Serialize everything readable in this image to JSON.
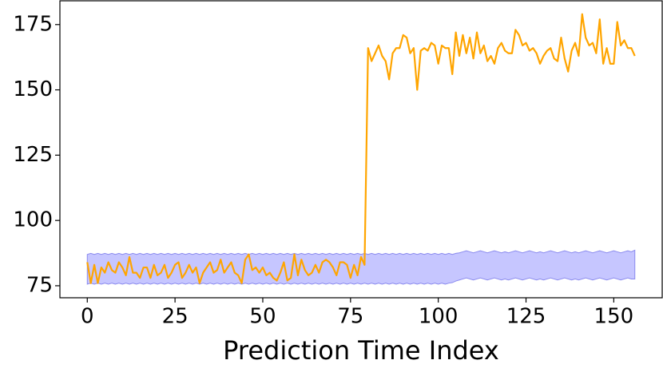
{
  "chart_data": {
    "type": "line",
    "xlabel": "Prediction Time Index",
    "xlim": [
      -7.8,
      163.8
    ],
    "ylim": [
      70.4,
      184.1
    ],
    "xticks": [
      0,
      25,
      50,
      75,
      100,
      125,
      150
    ],
    "yticks": [
      75,
      100,
      125,
      150,
      175
    ],
    "series": [
      {
        "color": "#ffa500",
        "values": [
          84,
          76,
          83,
          76,
          82,
          80,
          84,
          81,
          80,
          84,
          82,
          79,
          86,
          80,
          80,
          78,
          82,
          82,
          78,
          83,
          79,
          80,
          83,
          78,
          80,
          83,
          84,
          78,
          80,
          83,
          80,
          82,
          76,
          80,
          82,
          84,
          80,
          81,
          85,
          80,
          82,
          84,
          80,
          79,
          76,
          85,
          87,
          81,
          82,
          80,
          82,
          79,
          80,
          78,
          77,
          80,
          84,
          77,
          78,
          87,
          79,
          85,
          81,
          79,
          80,
          83,
          80,
          84,
          85,
          84,
          82,
          79,
          84,
          84,
          83,
          78,
          83,
          79,
          86,
          83,
          166,
          161,
          164,
          167,
          163,
          161,
          154,
          164,
          166,
          166,
          171,
          170,
          164,
          166,
          150,
          165,
          166,
          165,
          168,
          167,
          160,
          167,
          166,
          166,
          156,
          172,
          163,
          171,
          164,
          170,
          162,
          172,
          164,
          167,
          161,
          163,
          160,
          166,
          168,
          165,
          164,
          164,
          173,
          171,
          167,
          168,
          165,
          166,
          164,
          160,
          163,
          165,
          166,
          162,
          161,
          170,
          162,
          157,
          165,
          168,
          163,
          179,
          170,
          167,
          168,
          164,
          177,
          160,
          166,
          160,
          160,
          176,
          167,
          169,
          166,
          166,
          163
        ]
      }
    ],
    "band": {
      "color": "#c6c6ff",
      "edge_color": "#8a8aee",
      "upper": [
        87.0,
        87.4,
        87.0,
        87.4,
        87.0,
        87.4,
        87.0,
        87.4,
        87.0,
        87.4,
        87.0,
        87.4,
        87.0,
        87.4,
        87.0,
        87.4,
        87.0,
        87.4,
        87.0,
        87.4,
        87.0,
        87.4,
        87.0,
        87.4,
        87.0,
        87.4,
        87.0,
        87.4,
        87.0,
        87.4,
        87.0,
        87.4,
        87.0,
        87.4,
        87.0,
        87.4,
        87.0,
        87.4,
        87.0,
        87.4,
        87.0,
        87.4,
        87.0,
        87.4,
        87.0,
        87.4,
        87.0,
        87.4,
        87.0,
        87.4,
        87.0,
        87.4,
        87.0,
        87.4,
        87.0,
        87.4,
        87.0,
        87.4,
        87.0,
        87.4,
        87.0,
        87.4,
        87.0,
        87.4,
        87.0,
        87.4,
        87.0,
        87.4,
        87.0,
        87.4,
        87.0,
        87.4,
        87.0,
        87.4,
        87.0,
        87.4,
        87.0,
        87.4,
        87.0,
        87.4,
        87.0,
        87.4,
        87.0,
        87.4,
        87.0,
        87.4,
        87.0,
        87.4,
        87.0,
        87.4,
        87.0,
        87.4,
        87.0,
        87.4,
        87.0,
        87.4,
        87.0,
        87.4,
        87.0,
        87.4,
        87.0,
        87.4,
        87.0,
        87.4,
        87.0,
        87.4,
        87.6,
        88.0,
        88.4,
        88.0,
        87.6,
        88.0,
        88.4,
        88.0,
        87.6,
        88.0,
        88.4,
        88.0,
        87.6,
        88.0,
        87.6,
        88.0,
        88.4,
        88.0,
        87.6,
        88.0,
        88.4,
        88.0,
        87.6,
        88.0,
        87.6,
        88.0,
        88.4,
        88.0,
        87.6,
        88.0,
        88.4,
        88.0,
        87.6,
        88.0,
        87.6,
        88.0,
        88.4,
        88.0,
        87.6,
        88.0,
        88.4,
        88.0,
        87.6,
        88.0,
        88.4,
        88.0,
        87.6,
        88.0,
        88.4,
        88.0,
        88.6
      ],
      "lower": [
        75.6,
        76.0,
        75.6,
        76.0,
        75.6,
        76.0,
        75.6,
        76.0,
        75.6,
        76.0,
        75.6,
        76.0,
        75.6,
        76.0,
        75.6,
        76.0,
        75.6,
        76.0,
        75.6,
        76.0,
        75.6,
        76.0,
        75.6,
        76.0,
        75.6,
        76.0,
        75.6,
        76.0,
        75.6,
        76.0,
        75.6,
        76.0,
        75.6,
        76.0,
        75.6,
        76.0,
        75.6,
        76.0,
        75.6,
        76.0,
        75.6,
        76.0,
        75.6,
        76.0,
        75.6,
        76.0,
        75.6,
        76.0,
        75.6,
        76.0,
        75.6,
        76.0,
        75.6,
        76.0,
        75.6,
        76.0,
        75.6,
        76.0,
        75.6,
        76.0,
        75.6,
        76.0,
        75.6,
        76.0,
        75.6,
        76.0,
        75.6,
        76.0,
        75.6,
        76.0,
        75.6,
        76.0,
        75.6,
        76.0,
        75.6,
        76.0,
        75.6,
        76.0,
        75.6,
        76.0,
        75.6,
        76.0,
        75.6,
        76.0,
        75.6,
        76.0,
        75.6,
        76.0,
        75.6,
        76.0,
        75.6,
        76.0,
        75.6,
        76.0,
        75.6,
        76.0,
        75.6,
        76.0,
        75.6,
        76.0,
        75.6,
        76.0,
        75.6,
        76.0,
        76.2,
        76.8,
        77.2,
        77.6,
        78.0,
        77.6,
        77.2,
        77.6,
        78.0,
        77.6,
        77.2,
        77.6,
        78.0,
        77.6,
        77.2,
        77.6,
        77.2,
        77.6,
        78.0,
        77.6,
        77.2,
        77.6,
        78.0,
        77.6,
        77.2,
        77.6,
        77.2,
        77.6,
        78.0,
        77.6,
        77.2,
        77.6,
        78.0,
        77.6,
        77.2,
        77.6,
        77.2,
        77.6,
        78.0,
        77.6,
        77.2,
        77.6,
        78.0,
        77.6,
        77.2,
        77.6,
        78.0,
        77.6,
        77.2,
        77.6,
        78.0,
        77.6,
        77.6
      ]
    }
  }
}
